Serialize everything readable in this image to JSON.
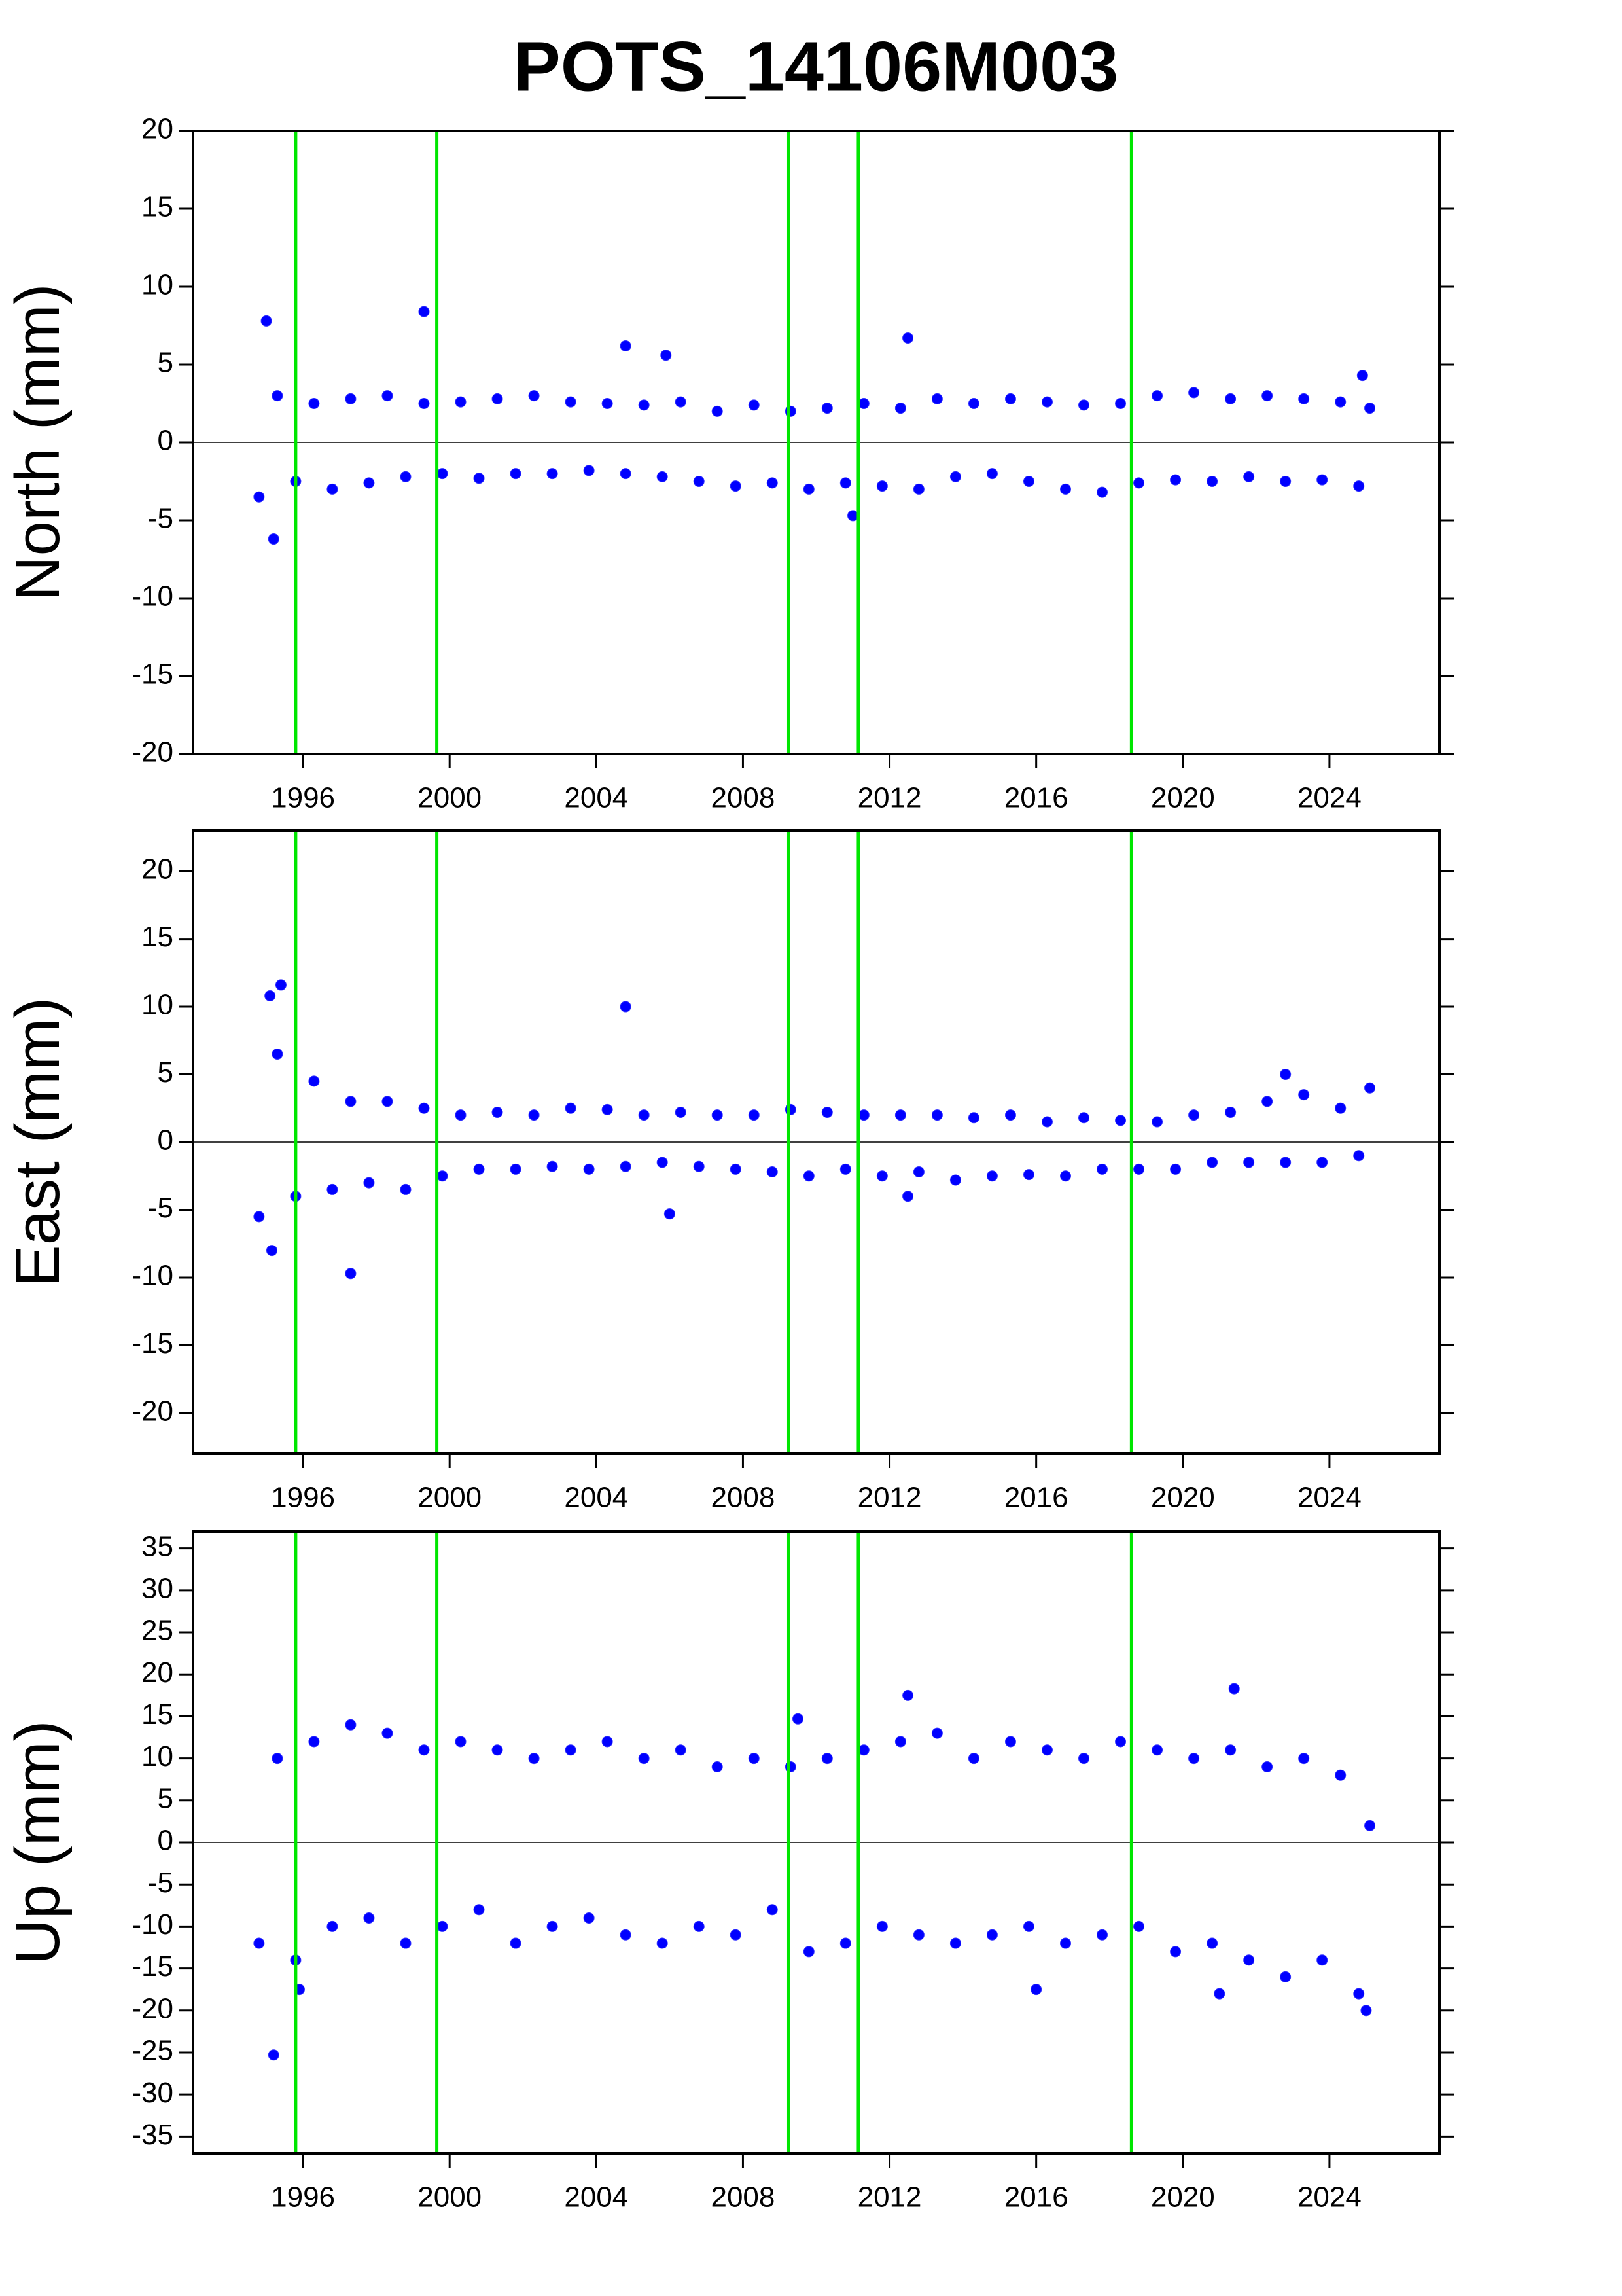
{
  "title": "POTS_14106M003",
  "chart_data": [
    {
      "type": "scatter",
      "ylabel": "North (mm)",
      "color": "#0000ff",
      "event_color": "#00e600",
      "xlim": [
        1993,
        2027
      ],
      "xticks": [
        1996,
        2000,
        2004,
        2008,
        2012,
        2016,
        2020,
        2024
      ],
      "ylim": [
        -20,
        20
      ],
      "yticks": [
        -20,
        -15,
        -10,
        -5,
        0,
        5,
        10,
        15,
        20
      ],
      "events": [
        1995.8,
        1999.65,
        2009.25,
        2011.15,
        2018.6
      ],
      "x": [
        1994.8,
        1995.3,
        1995.8,
        1996.3,
        1996.8,
        1997.3,
        1997.8,
        1998.3,
        1998.8,
        1999.3,
        1999.8,
        2000.3,
        2000.8,
        2001.3,
        2001.8,
        2002.3,
        2002.8,
        2003.3,
        2003.8,
        2004.3,
        2004.8,
        2005.3,
        2005.8,
        2006.3,
        2006.8,
        2007.3,
        2007.8,
        2008.3,
        2008.8,
        2009.3,
        2009.8,
        2010.3,
        2010.8,
        2011.3,
        2011.8,
        2012.3,
        2012.8,
        2013.3,
        2013.8,
        2014.3,
        2014.8,
        2015.3,
        2015.8,
        2016.3,
        2016.8,
        2017.3,
        2017.8,
        2018.3,
        2018.8,
        2019.3,
        2019.8,
        2020.3,
        2020.8,
        2021.3,
        2021.8,
        2022.3,
        2022.8,
        2023.3,
        2023.8,
        2024.3,
        2024.8,
        2025.1,
        1995.0,
        1995.2,
        1999.3,
        2004.8,
        2005.9,
        2012.5,
        2024.9,
        2011.0
      ],
      "values": [
        -3.5,
        3.0,
        -2.5,
        2.5,
        -3.0,
        2.8,
        -2.6,
        3.0,
        -2.2,
        2.5,
        -2.0,
        2.6,
        -2.3,
        2.8,
        -2.0,
        3.0,
        -2.0,
        2.6,
        -1.8,
        2.5,
        -2.0,
        2.4,
        -2.2,
        2.6,
        -2.5,
        2.0,
        -2.8,
        2.4,
        -2.6,
        2.0,
        -3.0,
        2.2,
        -2.6,
        2.5,
        -2.8,
        2.2,
        -3.0,
        2.8,
        -2.2,
        2.5,
        -2.0,
        2.8,
        -2.5,
        2.6,
        -3.0,
        2.4,
        -3.2,
        2.5,
        -2.6,
        3.0,
        -2.4,
        3.2,
        -2.5,
        2.8,
        -2.2,
        3.0,
        -2.5,
        2.8,
        -2.4,
        2.6,
        -2.8,
        2.2,
        7.8,
        -6.2,
        8.4,
        6.2,
        5.6,
        6.7,
        4.3,
        -4.7
      ]
    },
    {
      "type": "scatter",
      "ylabel": "East (mm)",
      "color": "#0000ff",
      "event_color": "#00e600",
      "xlim": [
        1993,
        2027
      ],
      "xticks": [
        1996,
        2000,
        2004,
        2008,
        2012,
        2016,
        2020,
        2024
      ],
      "ylim": [
        -23,
        23
      ],
      "yticks": [
        -20,
        -15,
        -10,
        -5,
        0,
        5,
        10,
        15,
        20
      ],
      "events": [
        1995.8,
        1999.65,
        2009.25,
        2011.15,
        2018.6
      ],
      "x": [
        1994.8,
        1995.3,
        1995.8,
        1996.3,
        1996.8,
        1997.3,
        1997.8,
        1998.3,
        1998.8,
        1999.3,
        1999.8,
        2000.3,
        2000.8,
        2001.3,
        2001.8,
        2002.3,
        2002.8,
        2003.3,
        2003.8,
        2004.3,
        2004.8,
        2005.3,
        2005.8,
        2006.3,
        2006.8,
        2007.3,
        2007.8,
        2008.3,
        2008.8,
        2009.3,
        2009.8,
        2010.3,
        2010.8,
        2011.3,
        2011.8,
        2012.3,
        2012.8,
        2013.3,
        2013.8,
        2014.3,
        2014.8,
        2015.3,
        2015.8,
        2016.3,
        2016.8,
        2017.3,
        2017.8,
        2018.3,
        2018.8,
        2019.3,
        2019.8,
        2020.3,
        2020.8,
        2021.3,
        2021.8,
        2022.3,
        2022.8,
        2023.3,
        2023.8,
        2024.3,
        2024.8,
        2025.1,
        1995.1,
        1995.4,
        1995.15,
        1997.3,
        2004.8,
        2006.0,
        2012.5,
        2022.8
      ],
      "values": [
        -5.5,
        6.5,
        -4.0,
        4.5,
        -3.5,
        3.0,
        -3.0,
        3.0,
        -3.5,
        2.5,
        -2.5,
        2.0,
        -2.0,
        2.2,
        -2.0,
        2.0,
        -1.8,
        2.5,
        -2.0,
        2.4,
        -1.8,
        2.0,
        -1.5,
        2.2,
        -1.8,
        2.0,
        -2.0,
        2.0,
        -2.2,
        2.4,
        -2.5,
        2.2,
        -2.0,
        2.0,
        -2.5,
        2.0,
        -2.2,
        2.0,
        -2.8,
        1.8,
        -2.5,
        2.0,
        -2.4,
        1.5,
        -2.5,
        1.8,
        -2.0,
        1.6,
        -2.0,
        1.5,
        -2.0,
        2.0,
        -1.5,
        2.2,
        -1.5,
        3.0,
        -1.5,
        3.5,
        -1.5,
        2.5,
        -1.0,
        4.0,
        10.8,
        11.6,
        -8.0,
        -9.7,
        10.0,
        -5.3,
        -4.0,
        5.0
      ]
    },
    {
      "type": "scatter",
      "ylabel": "Up (mm)",
      "color": "#0000ff",
      "event_color": "#00e600",
      "xlim": [
        1993,
        2027
      ],
      "xticks": [
        1996,
        2000,
        2004,
        2008,
        2012,
        2016,
        2020,
        2024
      ],
      "ylim": [
        -37,
        37
      ],
      "yticks": [
        -35,
        -30,
        -25,
        -20,
        -15,
        -10,
        -5,
        0,
        5,
        10,
        15,
        20,
        25,
        30,
        35
      ],
      "events": [
        1995.8,
        1999.65,
        2009.25,
        2011.15,
        2018.6
      ],
      "x": [
        1994.8,
        1995.3,
        1995.8,
        1996.3,
        1996.8,
        1997.3,
        1997.8,
        1998.3,
        1998.8,
        1999.3,
        1999.8,
        2000.3,
        2000.8,
        2001.3,
        2001.8,
        2002.3,
        2002.8,
        2003.3,
        2003.8,
        2004.3,
        2004.8,
        2005.3,
        2005.8,
        2006.3,
        2006.8,
        2007.3,
        2007.8,
        2008.3,
        2008.8,
        2009.3,
        2009.8,
        2010.3,
        2010.8,
        2011.3,
        2011.8,
        2012.3,
        2012.8,
        2013.3,
        2013.8,
        2014.3,
        2014.8,
        2015.3,
        2015.8,
        2016.3,
        2016.8,
        2017.3,
        2017.8,
        2018.3,
        2018.8,
        2019.3,
        2019.8,
        2020.3,
        2020.8,
        2021.3,
        2021.8,
        2022.3,
        2022.8,
        2023.3,
        2023.8,
        2024.3,
        2024.8,
        2025.1,
        1995.2,
        1995.9,
        2012.5,
        2016.0,
        2021.4,
        2021.0,
        2025.0,
        2009.5
      ],
      "values": [
        -12.0,
        10.0,
        -14.0,
        12.0,
        -10.0,
        14.0,
        -9.0,
        13.0,
        -12.0,
        11.0,
        -10.0,
        12.0,
        -8.0,
        11.0,
        -12.0,
        10.0,
        -10.0,
        11.0,
        -9.0,
        12.0,
        -11.0,
        10.0,
        -12.0,
        11.0,
        -10.0,
        9.0,
        -11.0,
        10.0,
        -8.0,
        9.0,
        -13.0,
        10.0,
        -12.0,
        11.0,
        -10.0,
        12.0,
        -11.0,
        13.0,
        -12.0,
        10.0,
        -11.0,
        12.0,
        -10.0,
        11.0,
        -12.0,
        10.0,
        -11.0,
        12.0,
        -10.0,
        11.0,
        -13.0,
        10.0,
        -12.0,
        11.0,
        -14.0,
        9.0,
        -16.0,
        10.0,
        -14.0,
        8.0,
        -18.0,
        2.0,
        -25.3,
        -17.5,
        17.5,
        -17.5,
        18.3,
        -18.0,
        -20.0,
        14.7
      ]
    }
  ]
}
